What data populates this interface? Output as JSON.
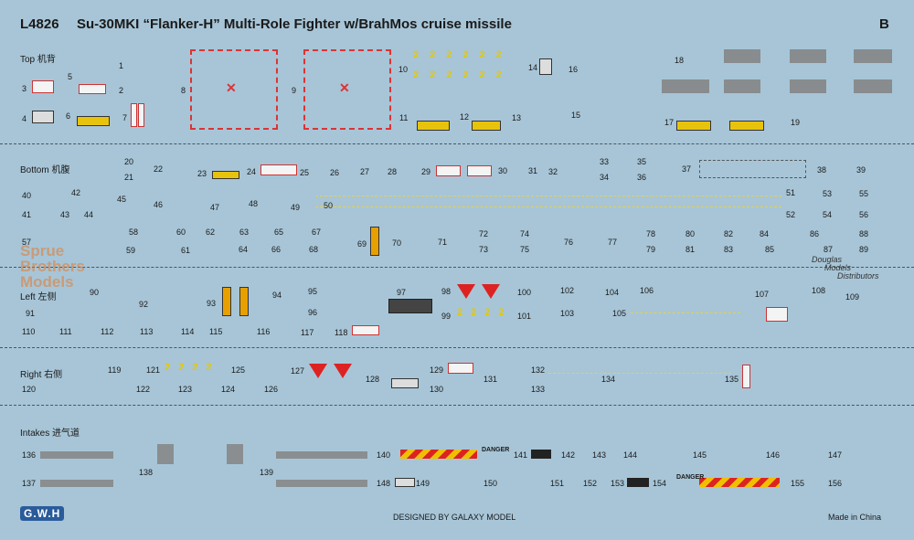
{
  "header": {
    "code": "L4826",
    "title": "Su-30MKI “Flanker-H” Multi-Role Fighter w/BrahMos cruise missile",
    "sheet": "B"
  },
  "sections": {
    "top": "Top 机背",
    "bottom": "Bottom 机腹",
    "left": "Left 左侧",
    "right": "Right 右侧",
    "intakes": "Intakes 进气道"
  },
  "warnings": {
    "danger": "DANGER"
  },
  "footer": {
    "logo": "G.W.H",
    "designer": "DESIGNED BY GALAXY MODEL",
    "origin": "Made in China"
  },
  "watermarks": {
    "sbm": [
      "Sprue",
      "Brothers",
      "Models"
    ],
    "dmd": [
      "Douglas",
      "Models",
      "Distributors"
    ]
  },
  "numbers": [
    [
      "1",
      130,
      67
    ],
    [
      "2",
      130,
      94
    ],
    [
      "3",
      24,
      92
    ],
    [
      "4",
      24,
      125
    ],
    [
      "5",
      74,
      79
    ],
    [
      "6",
      72,
      122
    ],
    [
      "7",
      134,
      124
    ],
    [
      "8",
      198,
      94
    ],
    [
      "9",
      319,
      94
    ],
    [
      "10",
      436,
      71
    ],
    [
      "11",
      437,
      124
    ],
    [
      "12",
      503,
      123
    ],
    [
      "13",
      560,
      124
    ],
    [
      "14",
      578,
      69
    ],
    [
      "15",
      625,
      121
    ],
    [
      "16",
      622,
      71
    ],
    [
      "17",
      727,
      129
    ],
    [
      "18",
      738,
      61
    ],
    [
      "19",
      865,
      129
    ],
    [
      "20",
      136,
      172
    ],
    [
      "21",
      136,
      189
    ],
    [
      "22",
      168,
      180
    ],
    [
      "23",
      216,
      185
    ],
    [
      "24",
      270,
      183
    ],
    [
      "25",
      328,
      184
    ],
    [
      "26",
      361,
      184
    ],
    [
      "27",
      394,
      183
    ],
    [
      "28",
      424,
      183
    ],
    [
      "29",
      461,
      183
    ],
    [
      "30",
      545,
      182
    ],
    [
      "31",
      578,
      182
    ],
    [
      "32",
      600,
      183
    ],
    [
      "33",
      656,
      172
    ],
    [
      "34",
      656,
      189
    ],
    [
      "35",
      697,
      172
    ],
    [
      "36",
      697,
      189
    ],
    [
      "37",
      746,
      180
    ],
    [
      "38",
      894,
      181
    ],
    [
      "39",
      937,
      181
    ],
    [
      "40",
      24,
      209
    ],
    [
      "41",
      24,
      230
    ],
    [
      "42",
      78,
      206
    ],
    [
      "43",
      66,
      230
    ],
    [
      "44",
      92,
      230
    ],
    [
      "45",
      128,
      213
    ],
    [
      "46",
      168,
      219
    ],
    [
      "47",
      230,
      222
    ],
    [
      "48",
      272,
      218
    ],
    [
      "49",
      318,
      222
    ],
    [
      "50",
      354,
      220
    ],
    [
      "51",
      860,
      206
    ],
    [
      "52",
      860,
      230
    ],
    [
      "53",
      900,
      207
    ],
    [
      "54",
      900,
      230
    ],
    [
      "55",
      940,
      207
    ],
    [
      "56",
      940,
      230
    ],
    [
      "57",
      24,
      260
    ],
    [
      "58",
      141,
      249
    ],
    [
      "59",
      138,
      269
    ],
    [
      "60",
      193,
      249
    ],
    [
      "61",
      198,
      269
    ],
    [
      "62",
      225,
      249
    ],
    [
      "63",
      262,
      249
    ],
    [
      "64",
      261,
      268
    ],
    [
      "65",
      300,
      249
    ],
    [
      "66",
      297,
      268
    ],
    [
      "67",
      341,
      249
    ],
    [
      "68",
      338,
      268
    ],
    [
      "69",
      391,
      262
    ],
    [
      "70",
      429,
      261
    ],
    [
      "71",
      479,
      260
    ],
    [
      "72",
      524,
      251
    ],
    [
      "73",
      524,
      268
    ],
    [
      "74",
      569,
      251
    ],
    [
      "75",
      569,
      268
    ],
    [
      "76",
      617,
      260
    ],
    [
      "77",
      665,
      260
    ],
    [
      "78",
      707,
      251
    ],
    [
      "79",
      707,
      268
    ],
    [
      "80",
      750,
      251
    ],
    [
      "81",
      750,
      268
    ],
    [
      "82",
      792,
      251
    ],
    [
      "83",
      792,
      268
    ],
    [
      "84",
      831,
      251
    ],
    [
      "85",
      837,
      268
    ],
    [
      "86",
      886,
      251
    ],
    [
      "87",
      901,
      268
    ],
    [
      "88",
      940,
      251
    ],
    [
      "89",
      940,
      268
    ],
    [
      "90",
      98,
      315
    ],
    [
      "91",
      28,
      338
    ],
    [
      "92",
      152,
      328
    ],
    [
      "93",
      226,
      327
    ],
    [
      "94",
      298,
      318
    ],
    [
      "95",
      337,
      314
    ],
    [
      "96",
      337,
      337
    ],
    [
      "97",
      434,
      315
    ],
    [
      "98",
      483,
      314
    ],
    [
      "99",
      483,
      341
    ],
    [
      "100",
      566,
      315
    ],
    [
      "101",
      566,
      341
    ],
    [
      "102",
      613,
      313
    ],
    [
      "103",
      613,
      338
    ],
    [
      "104",
      662,
      315
    ],
    [
      "105",
      670,
      338
    ],
    [
      "106",
      700,
      313
    ],
    [
      "107",
      826,
      317
    ],
    [
      "108",
      888,
      313
    ],
    [
      "109",
      925,
      320
    ],
    [
      "110",
      24,
      358
    ],
    [
      "111",
      65,
      358
    ],
    [
      "112",
      110,
      358
    ],
    [
      "113",
      153,
      358
    ],
    [
      "114",
      198,
      358
    ],
    [
      "115",
      229,
      358
    ],
    [
      "116",
      281,
      358
    ],
    [
      "117",
      329,
      359
    ],
    [
      "118",
      366,
      359
    ],
    [
      "119",
      118,
      400
    ],
    [
      "120",
      24,
      421
    ],
    [
      "121",
      160,
      400
    ],
    [
      "122",
      149,
      421
    ],
    [
      "123",
      195,
      421
    ],
    [
      "124",
      242,
      421
    ],
    [
      "125",
      253,
      400
    ],
    [
      "126",
      289,
      421
    ],
    [
      "127",
      318,
      401
    ],
    [
      "128",
      400,
      410
    ],
    [
      "129",
      470,
      400
    ],
    [
      "130",
      470,
      421
    ],
    [
      "131",
      529,
      410
    ],
    [
      "132",
      581,
      400
    ],
    [
      "133",
      581,
      421
    ],
    [
      "134",
      658,
      410
    ],
    [
      "135",
      793,
      410
    ],
    [
      "136",
      24,
      493
    ],
    [
      "137",
      24,
      524
    ],
    [
      "138",
      152,
      512
    ],
    [
      "139",
      284,
      512
    ],
    [
      "140",
      412,
      493
    ],
    [
      "141",
      562,
      493
    ],
    [
      "142",
      614,
      493
    ],
    [
      "143",
      648,
      493
    ],
    [
      "144",
      682,
      493
    ],
    [
      "145",
      758,
      493
    ],
    [
      "146",
      838,
      493
    ],
    [
      "147",
      906,
      493
    ],
    [
      "148",
      412,
      524
    ],
    [
      "149",
      455,
      524
    ],
    [
      "150",
      529,
      524
    ],
    [
      "151",
      602,
      524
    ],
    [
      "152",
      638,
      524
    ],
    [
      "153",
      668,
      524
    ],
    [
      "154",
      714,
      524
    ],
    [
      "155",
      865,
      524
    ],
    [
      "156",
      906,
      524
    ]
  ]
}
